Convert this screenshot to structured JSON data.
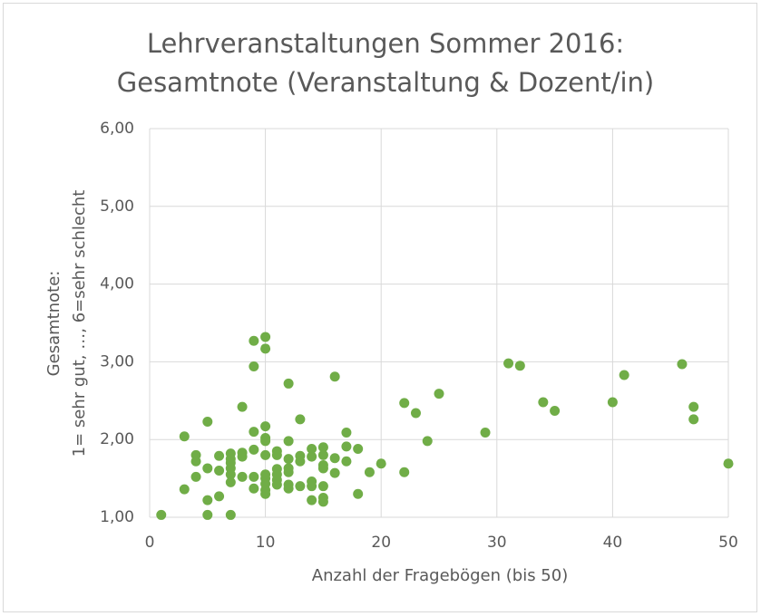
{
  "chart_data": {
    "type": "scatter",
    "title": [
      "Lehrveranstaltungen Sommer 2016:",
      "Gesamtnote (Veranstaltung & Dozent/in)"
    ],
    "x_label": "Anzahl der Fragebögen (bis 50)",
    "y_label": [
      "Gesamtnote:",
      "1= sehr gut, …, 6=sehr schlecht"
    ],
    "color": "#70ad47",
    "grid": true,
    "xlim": [
      0,
      50
    ],
    "xticks": [
      0,
      10,
      20,
      30,
      40,
      50
    ],
    "ylim": [
      1,
      6
    ],
    "yticks": [
      {
        "value": 1,
        "label": "1,00"
      },
      {
        "value": 2,
        "label": "2,00"
      },
      {
        "value": 3,
        "label": "3,00"
      },
      {
        "value": 4,
        "label": "4,00"
      },
      {
        "value": 5,
        "label": "5,00"
      },
      {
        "value": 6,
        "label": "6,00"
      }
    ],
    "x": [
      1,
      3,
      3,
      4,
      4,
      4,
      5,
      5,
      5,
      5,
      6,
      6,
      6,
      7,
      7,
      7,
      7,
      7,
      7,
      7,
      8,
      8,
      8,
      8,
      9,
      9,
      9,
      9,
      9,
      9,
      10,
      10,
      10,
      10,
      10,
      10,
      10,
      10,
      10,
      10,
      10,
      11,
      11,
      11,
      11,
      11,
      11,
      12,
      12,
      12,
      12,
      12,
      12,
      12,
      13,
      13,
      13,
      13,
      14,
      14,
      14,
      14,
      14,
      15,
      15,
      15,
      15,
      15,
      15,
      15,
      16,
      16,
      16,
      17,
      17,
      17,
      18,
      18,
      19,
      20,
      22,
      22,
      23,
      24,
      25,
      29,
      31,
      32,
      34,
      35,
      40,
      41,
      46,
      47,
      47,
      50
    ],
    "y": [
      1.03,
      2.04,
      1.36,
      1.8,
      1.72,
      1.52,
      2.23,
      1.63,
      1.22,
      1.03,
      1.79,
      1.6,
      1.27,
      1.82,
      1.75,
      1.7,
      1.63,
      1.55,
      1.45,
      1.03,
      2.42,
      1.83,
      1.78,
      1.52,
      3.27,
      2.94,
      2.1,
      1.87,
      1.52,
      1.37,
      3.32,
      3.17,
      2.17,
      2.02,
      1.98,
      1.8,
      1.55,
      1.5,
      1.43,
      1.35,
      1.3,
      1.85,
      1.8,
      1.62,
      1.55,
      1.48,
      1.42,
      2.72,
      1.98,
      1.75,
      1.63,
      1.58,
      1.42,
      1.37,
      2.26,
      1.79,
      1.72,
      1.4,
      1.88,
      1.78,
      1.46,
      1.4,
      1.22,
      1.9,
      1.8,
      1.67,
      1.63,
      1.4,
      1.25,
      1.2,
      2.81,
      1.76,
      1.57,
      2.09,
      1.91,
      1.72,
      1.88,
      1.3,
      1.58,
      1.69,
      2.47,
      1.58,
      2.34,
      1.98,
      2.59,
      2.09,
      2.98,
      2.95,
      2.48,
      2.37,
      2.48,
      2.83,
      2.97,
      2.42,
      2.26,
      1.69
    ]
  }
}
